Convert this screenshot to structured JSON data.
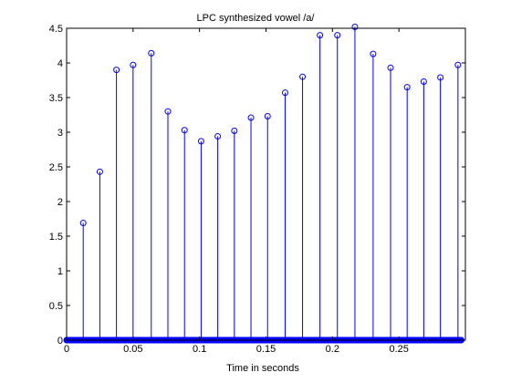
{
  "chart_data": {
    "type": "stem",
    "title": "LPC synthesized vowel /a/",
    "xlabel": "Time in seconds",
    "ylabel": "",
    "xlim": [
      0,
      0.3
    ],
    "ylim": [
      0,
      4.5
    ],
    "xticks": [
      0,
      0.05,
      0.1,
      0.15,
      0.2,
      0.25
    ],
    "xtick_labels": [
      "0",
      "0.05",
      "0.1",
      "0.15",
      "0.2",
      "0.25"
    ],
    "yticks": [
      0,
      0.5,
      1,
      1.5,
      2,
      2.5,
      3,
      3.5,
      4,
      4.5
    ],
    "ytick_labels": [
      "0",
      "0.5",
      "1",
      "1.5",
      "2",
      "2.5",
      "3",
      "3.5",
      "4",
      "4.5"
    ],
    "grid": false,
    "color": "#0000ff",
    "peaks": {
      "x": [
        0.0125,
        0.025,
        0.0375,
        0.05,
        0.0637,
        0.0762,
        0.0887,
        0.1012,
        0.1137,
        0.1262,
        0.1387,
        0.1512,
        0.1644,
        0.1775,
        0.1906,
        0.2037,
        0.2169,
        0.2306,
        0.2437,
        0.2562,
        0.2687,
        0.2812,
        0.2944
      ],
      "y": [
        1.69,
        2.43,
        3.9,
        3.97,
        4.14,
        3.3,
        3.03,
        2.87,
        2.94,
        3.02,
        3.21,
        3.23,
        3.57,
        3.8,
        4.4,
        4.4,
        4.52,
        4.13,
        3.93,
        3.65,
        3.73,
        3.79,
        3.97
      ]
    },
    "zero_markers": {
      "x_start": 0,
      "x_end": 0.2969,
      "step": 0.000125,
      "y": 0
    }
  }
}
